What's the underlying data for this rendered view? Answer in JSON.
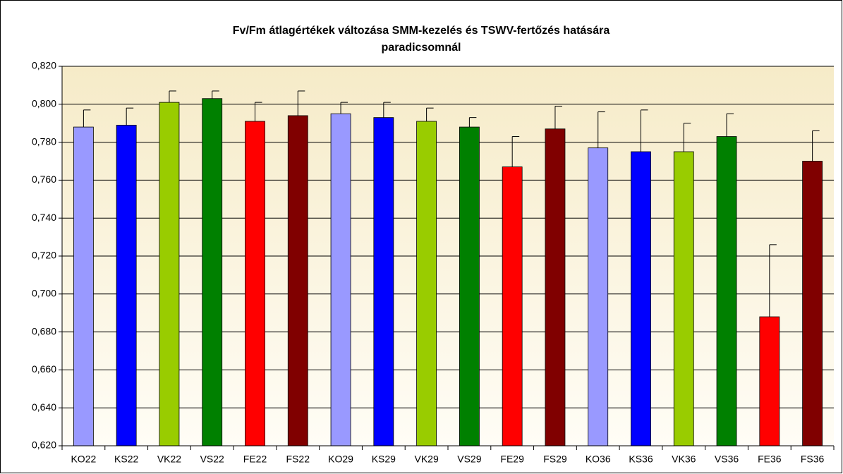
{
  "chart_data": {
    "type": "bar",
    "title": [
      "Fv/Fm átlagértékek változása SMM-kezelés és TSWV-fertőzés hatására",
      "paradicsomnál"
    ],
    "categories": [
      "KO22",
      "KS22",
      "VK22",
      "VS22",
      "FE22",
      "FS22",
      "KO29",
      "KS29",
      "VK29",
      "VS29",
      "FE29",
      "FS29",
      "KO36",
      "KS36",
      "VK36",
      "VS36",
      "FE36",
      "FS36"
    ],
    "values": [
      0.788,
      0.789,
      0.801,
      0.803,
      0.791,
      0.794,
      0.795,
      0.793,
      0.791,
      0.788,
      0.767,
      0.787,
      0.777,
      0.775,
      0.775,
      0.783,
      0.688,
      0.77
    ],
    "errors": [
      0.009,
      0.009,
      0.006,
      0.004,
      0.01,
      0.013,
      0.006,
      0.008,
      0.007,
      0.005,
      0.016,
      0.012,
      0.019,
      0.022,
      0.015,
      0.012,
      0.038,
      0.016
    ],
    "colors": [
      "#9999ff",
      "#0000ff",
      "#99cc00",
      "#008000",
      "#ff0000",
      "#800000",
      "#9999ff",
      "#0000ff",
      "#99cc00",
      "#008000",
      "#ff0000",
      "#800000",
      "#9999ff",
      "#0000ff",
      "#99cc00",
      "#008000",
      "#ff0000",
      "#800000"
    ],
    "ylim": [
      0.62,
      0.82
    ],
    "yticks": [
      {
        "value": 0.62,
        "label": "0,620"
      },
      {
        "value": 0.64,
        "label": "0,640"
      },
      {
        "value": 0.66,
        "label": "0,660"
      },
      {
        "value": 0.68,
        "label": "0,680"
      },
      {
        "value": 0.7,
        "label": "0,700"
      },
      {
        "value": 0.72,
        "label": "0,720"
      },
      {
        "value": 0.74,
        "label": "0,740"
      },
      {
        "value": 0.76,
        "label": "0,760"
      },
      {
        "value": 0.78,
        "label": "0,780"
      },
      {
        "value": 0.8,
        "label": "0,800"
      },
      {
        "value": 0.82,
        "label": "0,820"
      }
    ],
    "grid": true
  }
}
